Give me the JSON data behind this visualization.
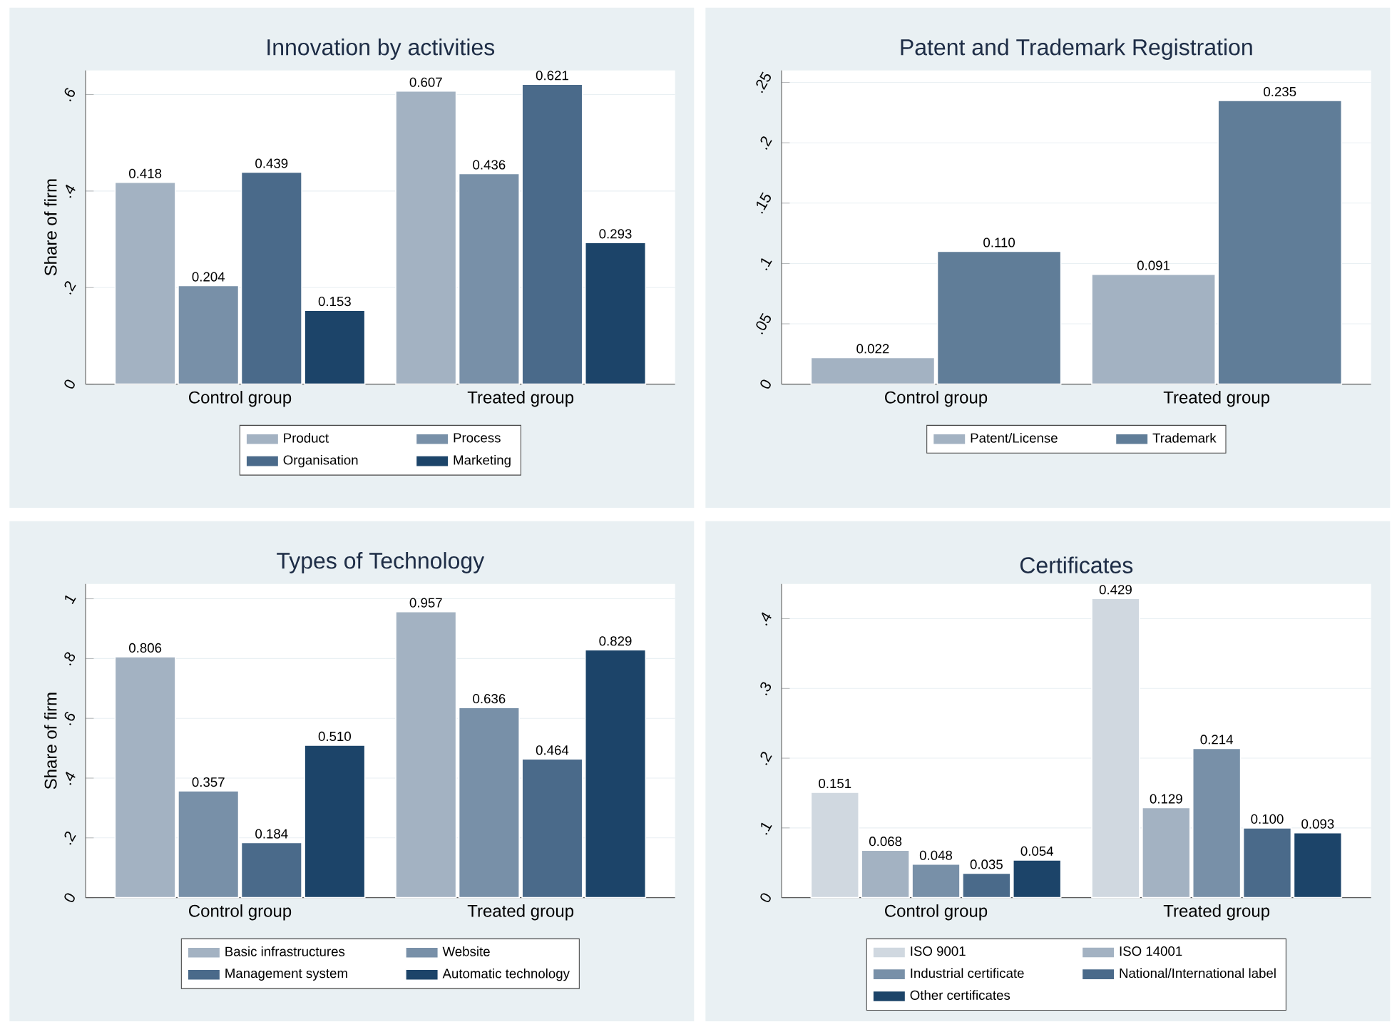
{
  "chart_data": [
    {
      "type": "bar",
      "title": "Innovation by activities",
      "ylabel": "Share of firm",
      "categories": [
        "Control group",
        "Treated group"
      ],
      "series": [
        {
          "name": "Product",
          "color": "#a3b2c2",
          "values": [
            0.418,
            0.607
          ],
          "value_labels": [
            "0.418",
            "0.607"
          ]
        },
        {
          "name": "Process",
          "color": "#7890a8",
          "values": [
            0.204,
            0.436
          ],
          "value_labels": [
            "0.204",
            "0.436"
          ]
        },
        {
          "name": "Organisation",
          "color": "#4a6a8a",
          "values": [
            0.439,
            0.621
          ],
          "value_labels": [
            "0.439",
            "0.621"
          ]
        },
        {
          "name": "Marketing",
          "color": "#1c4469",
          "values": [
            0.153,
            0.293
          ],
          "value_labels": [
            "0.153",
            "0.293"
          ]
        }
      ],
      "ylim": [
        0,
        0.65
      ],
      "yticks": [
        0,
        {
          "value": 0.2,
          "label": ".2"
        },
        {
          "value": 0.4,
          "label": ".4"
        },
        {
          "value": 0.6,
          "label": ".6"
        }
      ],
      "grid": "y",
      "legend": "bottom",
      "data_labels": true
    },
    {
      "type": "bar",
      "title": "Patent and Trademark Registration",
      "categories": [
        "Control group",
        "Treated group"
      ],
      "series": [
        {
          "name": "Patent/License",
          "color": "#a3b2c2",
          "values": [
            0.022,
            0.091
          ],
          "value_labels": [
            "0.022",
            "0.091"
          ]
        },
        {
          "name": "Trademark",
          "color": "#607d98",
          "values": [
            0.11,
            0.235
          ],
          "value_labels": [
            "0.110",
            "0.235"
          ]
        }
      ],
      "ylim": [
        0,
        0.26
      ],
      "yticks": [
        0,
        {
          "value": 0.05,
          "label": ".05"
        },
        {
          "value": 0.1,
          "label": ".1"
        },
        {
          "value": 0.15,
          "label": ".15"
        },
        {
          "value": 0.2,
          "label": ".2"
        },
        {
          "value": 0.25,
          "label": ".25"
        }
      ],
      "grid": "y",
      "legend": "bottom",
      "data_labels": true
    },
    {
      "type": "bar",
      "title": "Types of Technology",
      "ylabel": "Share of firm",
      "categories": [
        "Control group",
        "Treated group"
      ],
      "series": [
        {
          "name": "Basic infrastructures",
          "color": "#a3b2c2",
          "values": [
            0.806,
            0.957
          ],
          "value_labels": [
            "0.806",
            "0.957"
          ]
        },
        {
          "name": "Website",
          "color": "#7890a8",
          "values": [
            0.357,
            0.636
          ],
          "value_labels": [
            "0.357",
            "0.636"
          ]
        },
        {
          "name": "Management system",
          "color": "#4a6a8a",
          "values": [
            0.184,
            0.464
          ],
          "value_labels": [
            "0.184",
            "0.464"
          ]
        },
        {
          "name": "Automatic technology",
          "color": "#1c4469",
          "values": [
            0.51,
            0.829
          ],
          "value_labels": [
            "0.510",
            "0.829"
          ]
        }
      ],
      "ylim": [
        0,
        1.05
      ],
      "yticks": [
        0,
        {
          "value": 0.2,
          "label": ".2"
        },
        {
          "value": 0.4,
          "label": ".4"
        },
        {
          "value": 0.6,
          "label": ".6"
        },
        {
          "value": 0.8,
          "label": ".8"
        },
        1
      ],
      "grid": "y",
      "legend": "bottom",
      "data_labels": true
    },
    {
      "type": "bar",
      "title": "Certificates",
      "categories": [
        "Control group",
        "Treated group"
      ],
      "series": [
        {
          "name": "ISO 9001",
          "color": "#d0d8e0",
          "values": [
            0.151,
            0.429
          ],
          "value_labels": [
            "0.151",
            "0.429"
          ]
        },
        {
          "name": "ISO 14001",
          "color": "#a3b2c2",
          "values": [
            0.068,
            0.129
          ],
          "value_labels": [
            "0.068",
            "0.129"
          ]
        },
        {
          "name": "Industrial certificate",
          "color": "#7890a8",
          "values": [
            0.048,
            0.214
          ],
          "value_labels": [
            "0.048",
            "0.214"
          ]
        },
        {
          "name": "National/International label",
          "color": "#4a6a8a",
          "values": [
            0.035,
            0.1
          ],
          "value_labels": [
            "0.035",
            "0.100"
          ]
        },
        {
          "name": "Other certificates",
          "color": "#1c4469",
          "values": [
            0.054,
            0.093
          ],
          "value_labels": [
            "0.054",
            "0.093"
          ]
        }
      ],
      "ylim": [
        0,
        0.45
      ],
      "yticks": [
        0,
        {
          "value": 0.1,
          "label": ".1"
        },
        {
          "value": 0.2,
          "label": ".2"
        },
        {
          "value": 0.3,
          "label": ".3"
        },
        {
          "value": 0.4,
          "label": ".4"
        }
      ],
      "grid": "y",
      "legend": "bottom",
      "data_labels": true
    }
  ]
}
